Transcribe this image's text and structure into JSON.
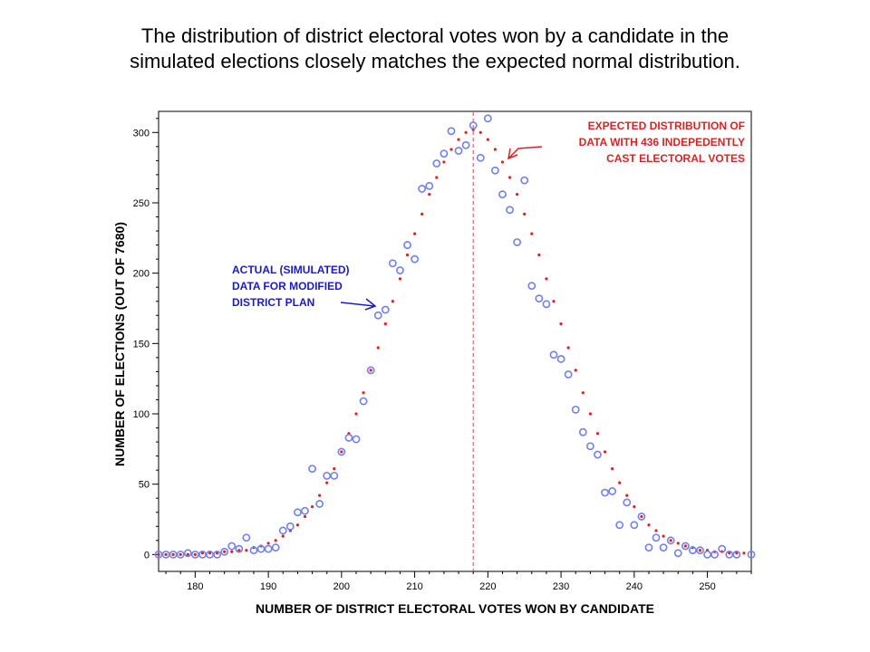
{
  "slide": {
    "title_line1": "The distribution of district electoral votes won by a candidate in the",
    "title_line2": "simulated elections closely matches the expected normal distribution."
  },
  "chart_data": {
    "type": "scatter",
    "xlabel": "NUMBER OF DISTRICT ELECTORAL VOTES WON BY CANDIDATE",
    "ylabel": "NUMBER OF ELECTIONS (OUT OF 7680)",
    "xlim": [
      175,
      256
    ],
    "ylim": [
      -12,
      315
    ],
    "xticks": [
      180,
      190,
      200,
      210,
      220,
      230,
      240,
      250
    ],
    "yticks": [
      0,
      50,
      100,
      150,
      200,
      250,
      300
    ],
    "grid": false,
    "mean_line": {
      "x": 218,
      "color": "#e04040",
      "style": "dashed"
    },
    "series": [
      {
        "marker": "open-circle",
        "color": "#6f7ff5",
        "x": [
          175,
          176,
          177,
          178,
          179,
          180,
          181,
          182,
          183,
          184,
          185,
          186,
          187,
          188,
          189,
          190,
          191,
          192,
          193,
          194,
          195,
          196,
          197,
          198,
          199,
          200,
          201,
          202,
          203,
          204,
          205,
          206,
          207,
          208,
          209,
          210,
          211,
          212,
          213,
          214,
          215,
          216,
          217,
          218,
          219,
          220,
          221,
          222,
          223,
          224,
          225,
          226,
          227,
          228,
          229,
          230,
          231,
          232,
          233,
          234,
          235,
          236,
          237,
          238,
          239,
          240,
          241,
          242,
          243,
          244,
          245,
          246,
          247,
          248,
          249,
          250,
          251,
          252,
          253,
          254,
          256
        ],
        "y": [
          0,
          0,
          0,
          0,
          1,
          0,
          0,
          0,
          0,
          2,
          6,
          4,
          12,
          3,
          4,
          4,
          5,
          17,
          20,
          30,
          31,
          61,
          36,
          56,
          56,
          73,
          83,
          82,
          109,
          131,
          170,
          174,
          207,
          202,
          220,
          210,
          260,
          262,
          278,
          285,
          301,
          287,
          291,
          305,
          282,
          310,
          273,
          256,
          245,
          222,
          266,
          191,
          182,
          178,
          142,
          139,
          128,
          103,
          87,
          77,
          71,
          44,
          45,
          21,
          37,
          21,
          27,
          5,
          12,
          5,
          10,
          1,
          6,
          3,
          3,
          0,
          0,
          4,
          0,
          0,
          0
        ]
      },
      {
        "marker": "dot",
        "color": "#e02020",
        "x": [
          175,
          176,
          177,
          178,
          179,
          180,
          181,
          182,
          183,
          184,
          185,
          186,
          187,
          188,
          189,
          190,
          191,
          192,
          193,
          194,
          195,
          196,
          197,
          198,
          199,
          200,
          201,
          202,
          203,
          204,
          205,
          206,
          207,
          208,
          209,
          210,
          211,
          212,
          213,
          214,
          215,
          216,
          217,
          218,
          219,
          220,
          221,
          222,
          223,
          224,
          225,
          226,
          227,
          228,
          229,
          230,
          231,
          232,
          233,
          234,
          235,
          236,
          237,
          238,
          239,
          240,
          241,
          242,
          243,
          244,
          245,
          246,
          247,
          248,
          249,
          250,
          251,
          252,
          253,
          254,
          255
        ],
        "y": [
          0,
          0,
          0,
          0,
          0,
          0,
          1,
          1,
          1,
          2,
          2,
          3,
          3,
          5,
          6,
          8,
          10,
          13,
          17,
          21,
          27,
          34,
          42,
          51,
          61,
          73,
          86,
          100,
          115,
          131,
          147,
          164,
          180,
          196,
          213,
          228,
          242,
          256,
          268,
          279,
          288,
          295,
          300,
          302,
          300,
          295,
          288,
          279,
          268,
          256,
          242,
          228,
          213,
          196,
          180,
          164,
          147,
          131,
          115,
          100,
          86,
          73,
          61,
          51,
          42,
          34,
          27,
          21,
          17,
          13,
          10,
          8,
          6,
          5,
          3,
          3,
          2,
          2,
          1,
          1,
          1
        ]
      }
    ],
    "annotations": [
      {
        "color": "#1a1acc",
        "lines": [
          "ACTUAL (SIMULATED)",
          "DATA FOR MODIFIED",
          "DISTRICT PLAN"
        ]
      },
      {
        "color": "#e02020",
        "lines": [
          "EXPECTED DISTRIBUTION OF",
          "DATA WITH 436 INDEPEDENTLY",
          "CAST ELECTORAL VOTES"
        ]
      }
    ]
  }
}
